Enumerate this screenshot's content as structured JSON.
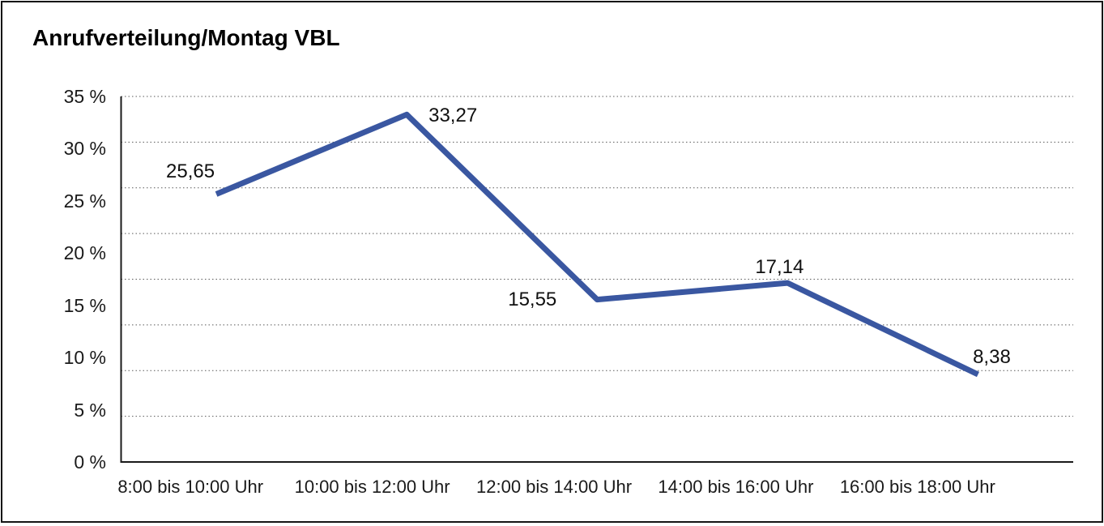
{
  "window": {
    "background": "#ffffff",
    "border_color": "#151515"
  },
  "chart_data": {
    "type": "line",
    "title": "Anrufverteilung/Montag VBL",
    "categories": [
      "8:00 bis 10:00 Uhr",
      "10:00 bis 12:00 Uhr",
      "12:00 bis 14:00 Uhr",
      "14:00 bis 16:00 Uhr",
      "16:00 bis 18:00 Uhr"
    ],
    "series": [
      {
        "values": [
          25.65,
          33.27,
          15.55,
          17.14,
          8.38
        ],
        "point_labels": [
          "25,65",
          "33,27",
          "15,55",
          "17,14",
          "8,38"
        ],
        "color": "#3A57A1"
      }
    ],
    "xlabel": "",
    "ylabel": "",
    "ylim": [
      0,
      35
    ],
    "y_ticks": [
      {
        "value": 0,
        "label": "0 %"
      },
      {
        "value": 5,
        "label": "5 %"
      },
      {
        "value": 10,
        "label": "10 %"
      },
      {
        "value": 15,
        "label": "15 %"
      },
      {
        "value": 20,
        "label": "20 %"
      },
      {
        "value": 25,
        "label": "25 %"
      },
      {
        "value": 30,
        "label": "30 %"
      },
      {
        "value": 35,
        "label": "35 %"
      }
    ],
    "grid": {
      "style": "dotted",
      "color": "#5a5a5a",
      "divisions": 8
    },
    "axis_color": "#1a1a1a",
    "label_color": "#1a1a1a",
    "legend": "none"
  }
}
